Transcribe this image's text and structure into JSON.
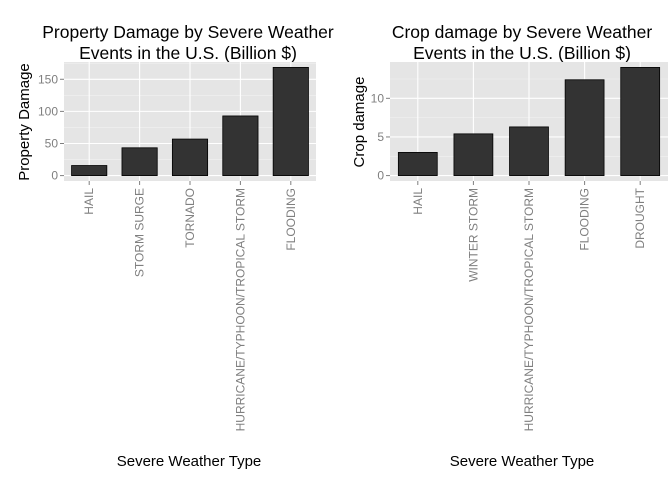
{
  "chart_data": [
    {
      "type": "bar",
      "title_line1": "Property Damage by Severe Weather",
      "title_line2": "Events in the U.S. (Billion $)",
      "xlabel": "Severe Weather Type",
      "ylabel": "Property Damage",
      "categories": [
        "HAIL",
        "STORM SURGE",
        "TORNADO",
        "HURRICANE/TYPHOON/TROPICAL STORM",
        "FLOODING"
      ],
      "values": [
        15.7,
        43.3,
        56.9,
        92.9,
        168.5
      ],
      "yticks": [
        0,
        50,
        100,
        150
      ],
      "ylim": [
        -8.4,
        176.9
      ],
      "bar_color": "#333333",
      "panel_color": "#e5e5e5",
      "grid": true
    },
    {
      "type": "bar",
      "title_line1": "Crop damage by Severe Weather",
      "title_line2": "Events in the U.S. (Billion $)",
      "xlabel": "Severe Weather Type",
      "ylabel": "Crop damage",
      "categories": [
        "HAIL",
        "WINTER STORM",
        "HURRICANE/TYPHOON/TROPICAL STORM",
        "FLOODING",
        "DROUGHT"
      ],
      "values": [
        3.0,
        5.4,
        6.3,
        12.4,
        14.0
      ],
      "yticks": [
        0,
        5,
        10
      ],
      "ylim": [
        -0.7,
        14.7
      ],
      "bar_color": "#333333",
      "panel_color": "#e5e5e5",
      "grid": true
    }
  ]
}
